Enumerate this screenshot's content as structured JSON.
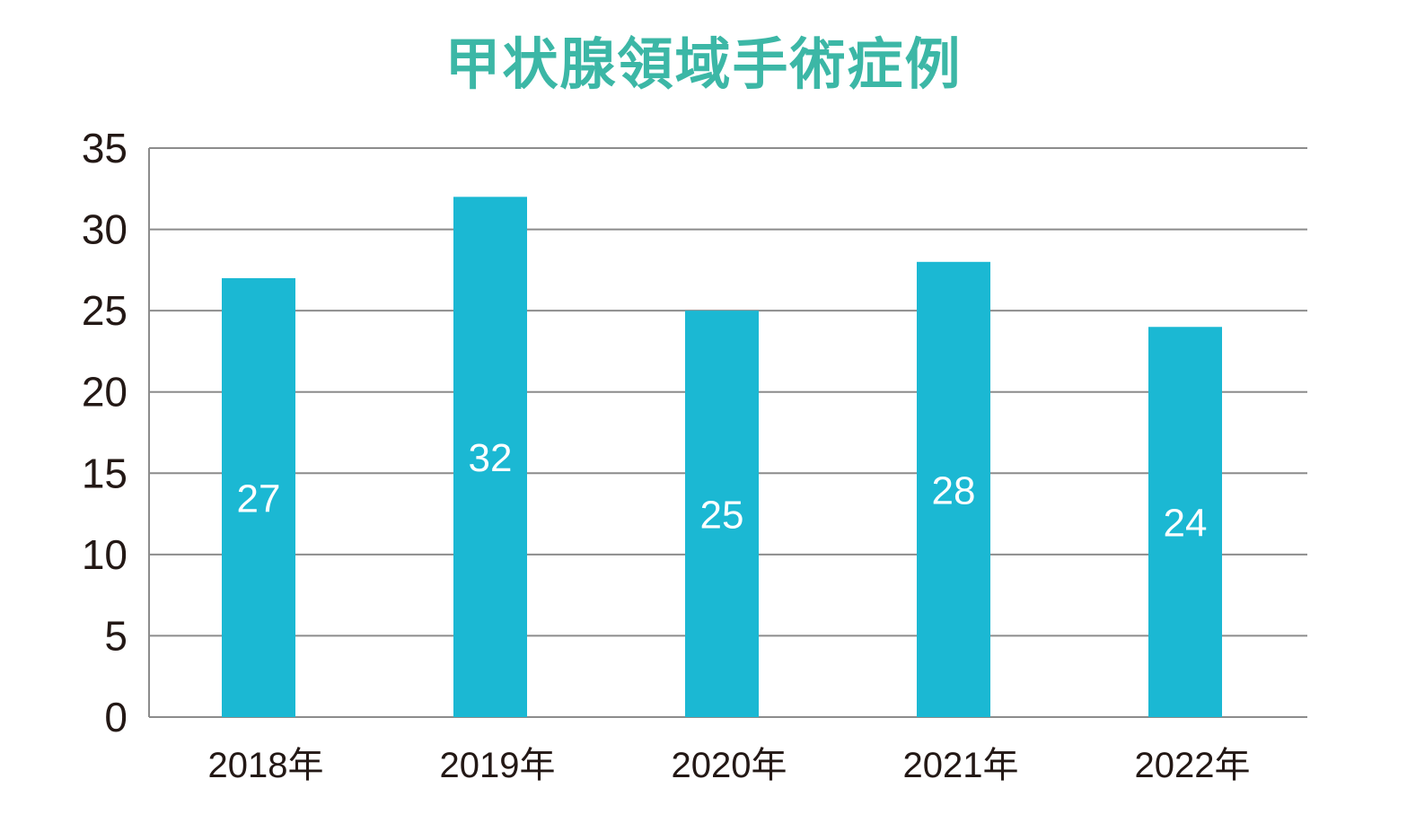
{
  "chart_data": {
    "type": "bar",
    "title": "甲状腺領域手術症例",
    "categories": [
      "2018年",
      "2019年",
      "2020年",
      "2021年",
      "2022年"
    ],
    "values": [
      27,
      32,
      25,
      28,
      24
    ],
    "xlabel": "",
    "ylabel": "",
    "ylim": [
      0,
      35
    ],
    "yticks": [
      0,
      5,
      10,
      15,
      20,
      25,
      30,
      35
    ],
    "grid": true,
    "data_labels": true,
    "legend": "none"
  },
  "colors": {
    "title": "#3cb7a6",
    "bar": "#1bb8d3",
    "grid": "#8c8c8c",
    "axis_text": "#231815",
    "value_text": "#ffffff"
  }
}
